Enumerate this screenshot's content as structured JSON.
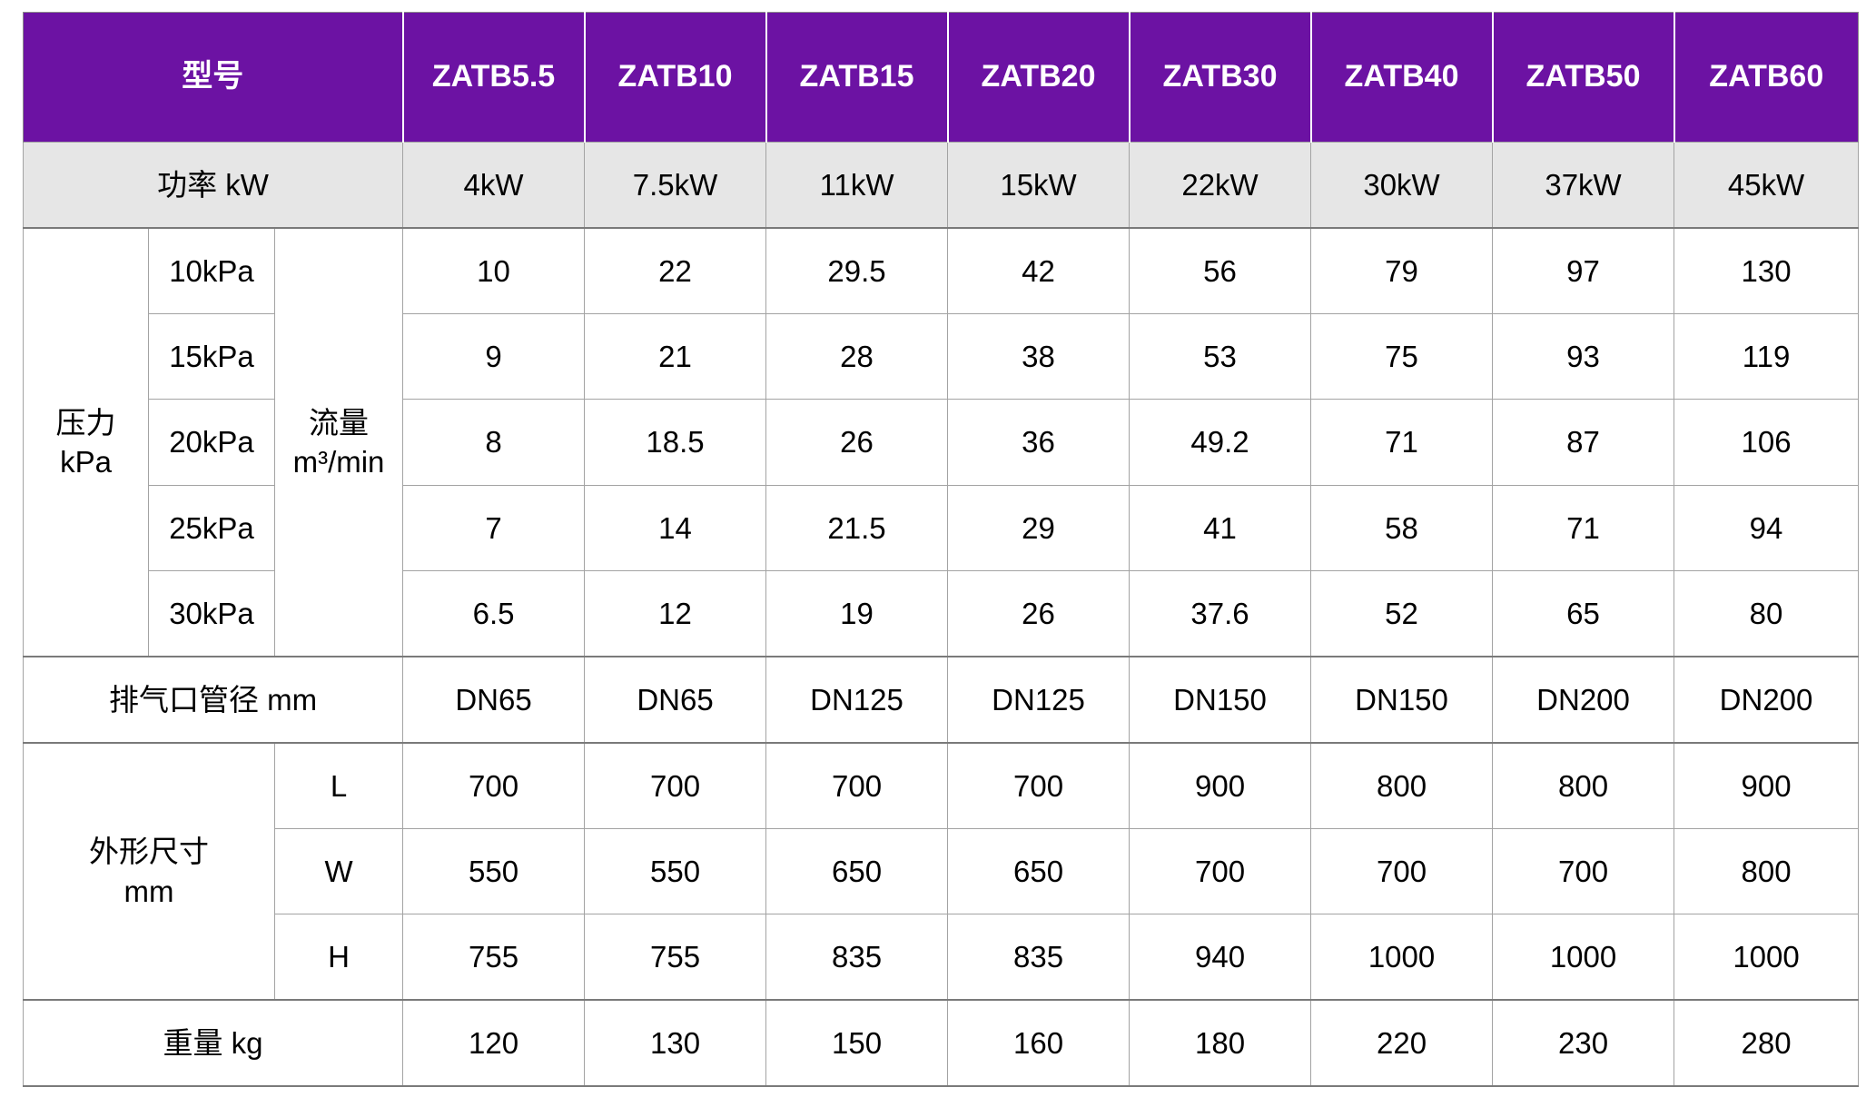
{
  "colors": {
    "header_bg": "#6C12A3",
    "header_text": "#FFFFFF",
    "power_row_bg": "#E6E6E6",
    "grid_line": "#A3A3A3",
    "section_line": "#7A7A7A",
    "body_text": "#000000"
  },
  "table": {
    "header": {
      "model_label": "型号",
      "models": [
        "ZATB5.5",
        "ZATB10",
        "ZATB15",
        "ZATB20",
        "ZATB30",
        "ZATB40",
        "ZATB50",
        "ZATB60"
      ]
    },
    "power": {
      "label": "功率 kW",
      "values": [
        "4kW",
        "7.5kW",
        "11kW",
        "15kW",
        "22kW",
        "30kW",
        "37kW",
        "45kW"
      ]
    },
    "pressure": {
      "label_line1": "压力",
      "label_line2": "kPa",
      "flow_label_line1": "流量",
      "flow_label_line2": "m³/min",
      "rows": [
        {
          "pressure": "10kPa",
          "values": [
            "10",
            "22",
            "29.5",
            "42",
            "56",
            "79",
            "97",
            "130"
          ]
        },
        {
          "pressure": "15kPa",
          "values": [
            "9",
            "21",
            "28",
            "38",
            "53",
            "75",
            "93",
            "119"
          ]
        },
        {
          "pressure": "20kPa",
          "values": [
            "8",
            "18.5",
            "26",
            "36",
            "49.2",
            "71",
            "87",
            "106"
          ]
        },
        {
          "pressure": "25kPa",
          "values": [
            "7",
            "14",
            "21.5",
            "29",
            "41",
            "58",
            "71",
            "94"
          ]
        },
        {
          "pressure": "30kPa",
          "values": [
            "6.5",
            "12",
            "19",
            "26",
            "37.6",
            "52",
            "65",
            "80"
          ]
        }
      ]
    },
    "outlet": {
      "label": "排气口管径 mm",
      "values": [
        "DN65",
        "DN65",
        "DN125",
        "DN125",
        "DN150",
        "DN150",
        "DN200",
        "DN200"
      ]
    },
    "dimensions": {
      "label_line1": "外形尺寸",
      "label_line2": "mm",
      "rows": [
        {
          "dim": "L",
          "values": [
            "700",
            "700",
            "700",
            "700",
            "900",
            "800",
            "800",
            "900"
          ]
        },
        {
          "dim": "W",
          "values": [
            "550",
            "550",
            "650",
            "650",
            "700",
            "700",
            "700",
            "800"
          ]
        },
        {
          "dim": "H",
          "values": [
            "755",
            "755",
            "835",
            "835",
            "940",
            "1000",
            "1000",
            "1000"
          ]
        }
      ]
    },
    "weight": {
      "label": "重量 kg",
      "values": [
        "120",
        "130",
        "150",
        "160",
        "180",
        "220",
        "230",
        "280"
      ]
    }
  }
}
